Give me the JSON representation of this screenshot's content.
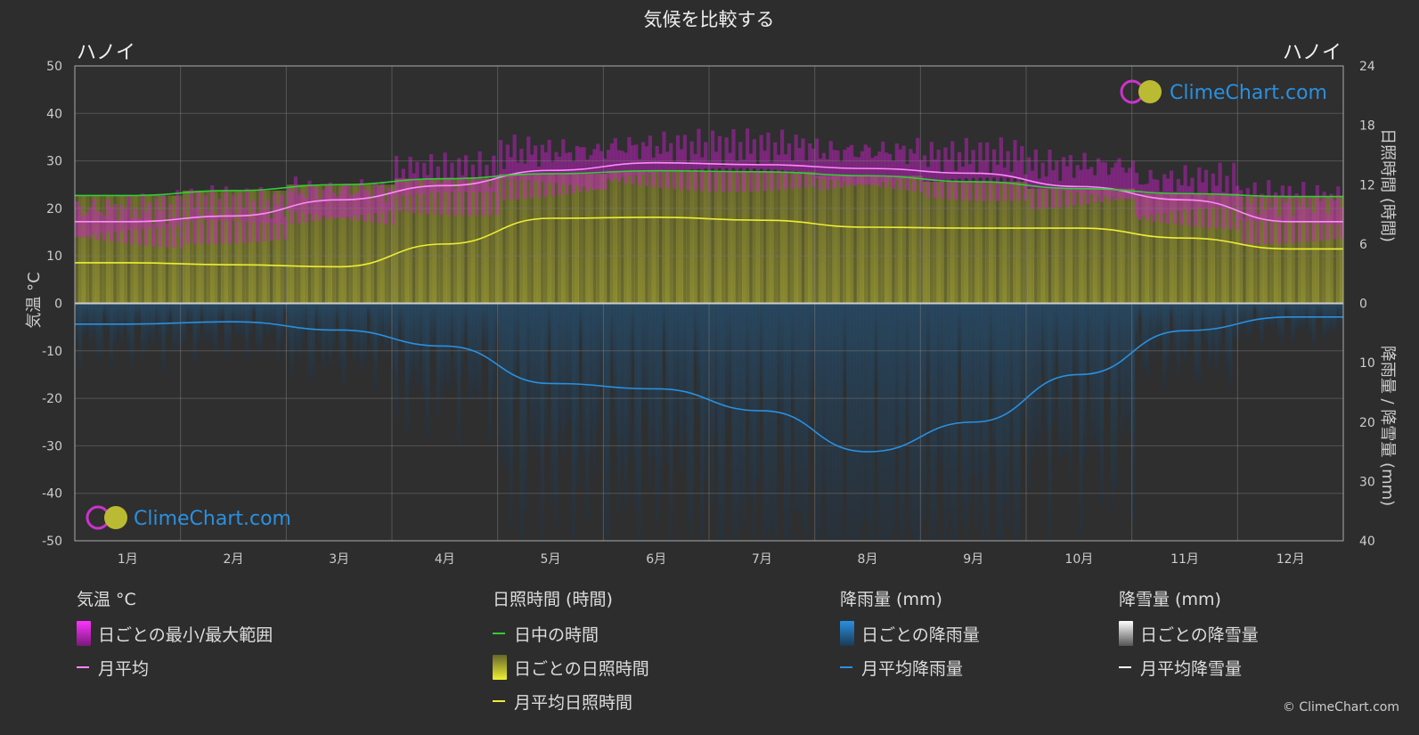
{
  "title": "気候を比較する",
  "location_left": "ハノイ",
  "location_right": "ハノイ",
  "axis_left_label": "気温 °C",
  "axis_right_top_label": "日照時間 (時間)",
  "axis_right_bottom_label": "降雨量 / 降雪量 (mm)",
  "watermark": "ClimeChart.com",
  "copyright": "© ClimeChart.com",
  "legend": {
    "temp": {
      "title": "気温 °C",
      "range": "日ごとの最小/最大範囲",
      "avg": "月平均"
    },
    "sun": {
      "title": "日照時間 (時間)",
      "daylight": "日中の時間",
      "daily": "日ごとの日照時間",
      "avg": "月平均日照時間"
    },
    "rain": {
      "title": "降雨量 (mm)",
      "daily": "日ごとの降雨量",
      "avg": "月平均降雨量"
    },
    "snow": {
      "title": "降雪量 (mm)",
      "daily": "日ごとの降雪量",
      "avg": "月平均降雪量"
    }
  },
  "colors": {
    "background": "#2d2d2d",
    "temp_range": "#d020d0",
    "temp_avg": "#ff88ff",
    "daylight": "#33cc33",
    "sunshine": "#c8c83a",
    "sunshine_avg": "#eeee33",
    "rain": "#1f6aa5",
    "rain_avg": "#2a90e0",
    "snow_avg": "#ffffff",
    "grid": "#5a5a5a"
  },
  "chart_data": {
    "type": "line",
    "categories": [
      "1月",
      "2月",
      "3月",
      "4月",
      "5月",
      "6月",
      "7月",
      "8月",
      "9月",
      "10月",
      "11月",
      "12月"
    ],
    "y_left": {
      "label": "気温 °C",
      "range": [
        -50,
        50
      ],
      "ticks": [
        50,
        40,
        30,
        20,
        10,
        0,
        -10,
        -20,
        -30,
        -40,
        -50
      ]
    },
    "y_right_top": {
      "label": "日照時間 (時間)",
      "range": [
        0,
        24
      ],
      "ticks": [
        24,
        18,
        12,
        6,
        0
      ]
    },
    "y_right_bottom": {
      "label": "降雨量 / 降雪量 (mm)",
      "range": [
        0,
        40
      ],
      "ticks": [
        0,
        10,
        20,
        30,
        40
      ]
    },
    "series": [
      {
        "name": "月平均",
        "axis": "temperature",
        "values": [
          17.2,
          18.4,
          21.8,
          24.8,
          28.0,
          29.6,
          29.2,
          28.4,
          27.4,
          24.6,
          21.8,
          17.2
        ]
      },
      {
        "name": "日中の時間",
        "axis": "sunshine_hours",
        "values": [
          10.9,
          11.4,
          12.0,
          12.6,
          13.1,
          13.4,
          13.3,
          12.9,
          12.3,
          11.6,
          11.1,
          10.8
        ]
      },
      {
        "name": "月平均日照時間",
        "axis": "sunshine_hours",
        "values": [
          4.1,
          3.9,
          3.7,
          6.0,
          8.6,
          8.7,
          8.4,
          7.7,
          7.6,
          7.6,
          6.6,
          5.5
        ]
      },
      {
        "name": "月平均降雨量",
        "axis": "precipitation_mm",
        "values": [
          3.5,
          3.1,
          4.5,
          7.2,
          13.5,
          14.4,
          18.1,
          25.0,
          20.0,
          12.0,
          4.6,
          2.3
        ]
      },
      {
        "name": "月平均降雪量",
        "axis": "precipitation_mm",
        "values": [
          0,
          0,
          0,
          0,
          0,
          0,
          0,
          0,
          0,
          0,
          0,
          0
        ]
      }
    ],
    "daily_temp_range_monthly": {
      "min": [
        14,
        15,
        18,
        21,
        24,
        26,
        26,
        25,
        24,
        22,
        18,
        15
      ],
      "max": [
        20,
        21,
        24,
        28,
        32,
        33,
        33,
        32,
        31,
        29,
        26,
        22
      ]
    },
    "daily_sunshine_range_monthly": [
      10.9,
      11.4,
      12.0,
      12.6,
      13.1,
      13.4,
      13.3,
      12.9,
      12.3,
      11.6,
      11.1,
      10.8
    ],
    "grid": true
  }
}
